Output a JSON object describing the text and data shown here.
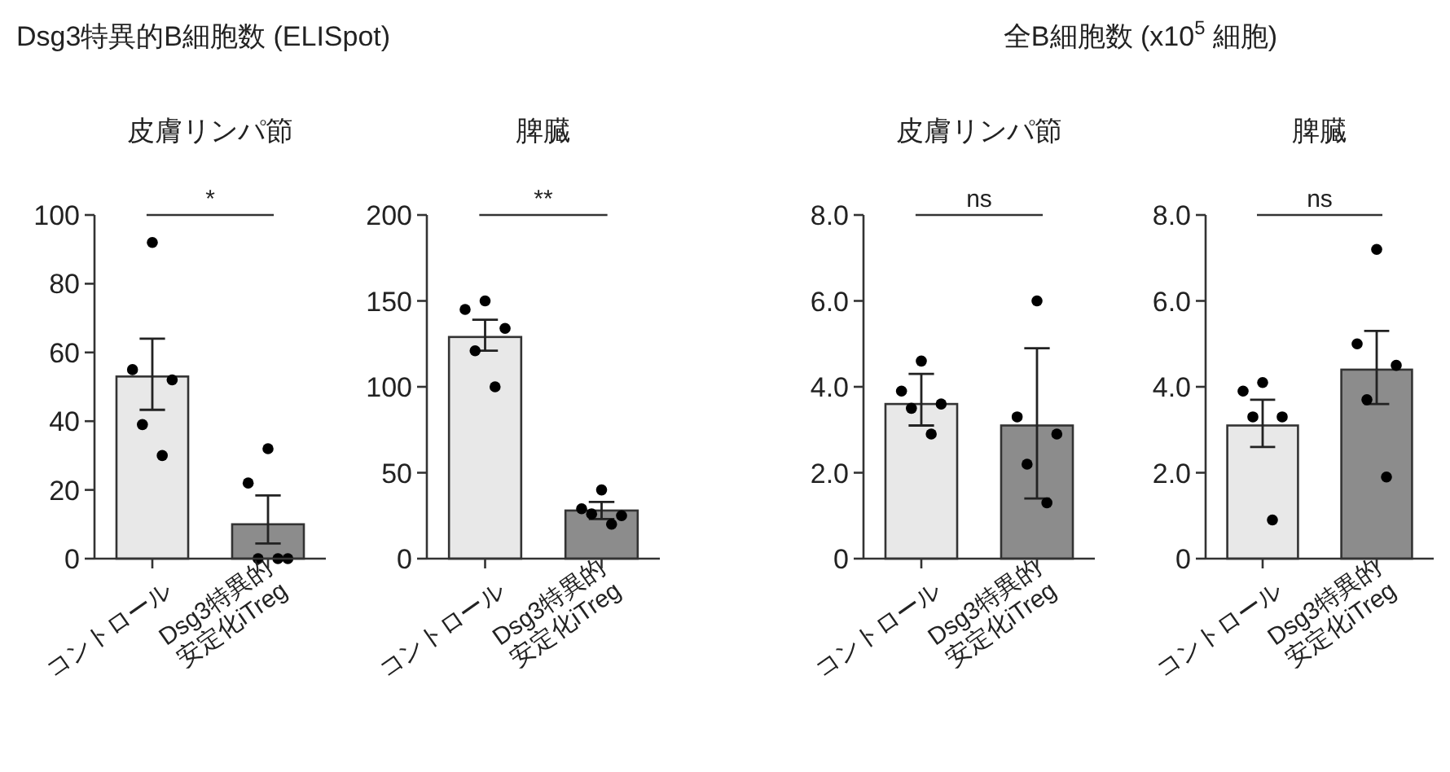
{
  "chart_data": [
    {
      "type": "bar",
      "title": "Dsg3特異的B細胞数 (ELISpot)",
      "subtitle": "皮膚リンパ節",
      "categories": [
        "コントロール",
        "Dsg3特異的 安定化iTreg"
      ],
      "ylim": [
        0,
        100
      ],
      "yticks": [
        0,
        20,
        40,
        60,
        80,
        100
      ],
      "annotations": [
        "*"
      ],
      "series": [
        {
          "type": "bar",
          "values": [
            53,
            10
          ],
          "errors": [
            [
              43.3,
              64
            ],
            [
              4.4,
              18.4
            ]
          ],
          "colors": [
            "#e8e8e8",
            "#8c8c8c"
          ]
        },
        {
          "type": "scatter",
          "marker": "circle",
          "color": "#000000",
          "x": [
            "コントロール",
            "コントロール",
            "コントロール",
            "コントロール",
            "コントロール",
            "Dsg3特異的 安定化iTreg",
            "Dsg3特異的 安定化iTreg",
            "Dsg3特異的 安定化iTreg",
            "Dsg3特異的 安定化iTreg",
            "Dsg3特異的 安定化iTreg"
          ],
          "values": [
            92,
            55,
            52,
            39,
            30,
            32,
            22,
            0,
            0,
            0
          ]
        }
      ]
    },
    {
      "type": "bar",
      "subtitle": "脾臓",
      "categories": [
        "コントロール",
        "Dsg3特異的 安定化iTreg"
      ],
      "ylim": [
        0,
        200
      ],
      "yticks": [
        0,
        50,
        100,
        150,
        200
      ],
      "annotations": [
        "**"
      ],
      "series": [
        {
          "type": "bar",
          "values": [
            129,
            28
          ],
          "errors": [
            [
              121,
              139
            ],
            [
              23,
              33
            ]
          ],
          "colors": [
            "#e8e8e8",
            "#8c8c8c"
          ]
        },
        {
          "type": "scatter",
          "marker": "circle",
          "color": "#000000",
          "x": [
            "コントロール",
            "コントロール",
            "コントロール",
            "コントロール",
            "コントロール",
            "Dsg3特異的 安定化iTreg",
            "Dsg3特異的 安定化iTreg",
            "Dsg3特異的 安定化iTreg",
            "Dsg3特異的 安定化iTreg",
            "Dsg3特異的 安定化iTreg"
          ],
          "values": [
            150,
            145,
            134,
            121,
            100,
            40,
            29,
            25,
            26,
            20
          ]
        }
      ]
    },
    {
      "type": "bar",
      "title": "全B細胞数 (x10$^{5}$ 細胞)",
      "subtitle": "皮膚リンパ節",
      "categories": [
        "コントロール",
        "Dsg3特異的 安定化iTreg"
      ],
      "ylim": [
        0,
        8
      ],
      "yticks": [
        0,
        {
          "value": 2,
          "label": "2.0"
        },
        {
          "value": 4,
          "label": "4.0"
        },
        {
          "value": 6,
          "label": "6.0"
        },
        {
          "value": 8,
          "label": "8.0"
        }
      ],
      "annotations": [
        "ns"
      ],
      "series": [
        {
          "type": "bar",
          "values": [
            3.6,
            3.1
          ],
          "errors": [
            [
              3.1,
              4.3
            ],
            [
              1.4,
              4.9
            ]
          ],
          "colors": [
            "#e8e8e8",
            "#8c8c8c"
          ]
        },
        {
          "type": "scatter",
          "marker": "circle",
          "color": "#000000",
          "x": [
            "コントロール",
            "コントロール",
            "コントロール",
            "コントロール",
            "コントロール",
            "Dsg3特異的 安定化iTreg",
            "Dsg3特異的 安定化iTreg",
            "Dsg3特異的 安定化iTreg",
            "Dsg3特異的 安定化iTreg",
            "Dsg3特異的 安定化iTreg"
          ],
          "values": [
            4.6,
            3.9,
            3.6,
            3.5,
            2.9,
            6.0,
            3.3,
            2.9,
            2.2,
            1.3
          ]
        }
      ]
    },
    {
      "type": "bar",
      "subtitle": "脾臓",
      "categories": [
        "コントロール",
        "Dsg3特異的 安定化iTreg"
      ],
      "ylim": [
        0,
        8
      ],
      "yticks": [
        0,
        {
          "value": 2,
          "label": "2.0"
        },
        {
          "value": 4,
          "label": "4.0"
        },
        {
          "value": 6,
          "label": "6.0"
        },
        {
          "value": 8,
          "label": "8.0"
        }
      ],
      "annotations": [
        "ns"
      ],
      "series": [
        {
          "type": "bar",
          "values": [
            3.1,
            4.4
          ],
          "errors": [
            [
              2.6,
              3.7
            ],
            [
              3.6,
              5.3
            ]
          ],
          "colors": [
            "#e8e8e8",
            "#8c8c8c"
          ]
        },
        {
          "type": "scatter",
          "marker": "circle",
          "color": "#000000",
          "x": [
            "コントロール",
            "コントロール",
            "コントロール",
            "コントロール",
            "コントロール",
            "Dsg3特異的 安定化iTreg",
            "Dsg3特異的 安定化iTreg",
            "Dsg3特異的 安定化iTreg",
            "Dsg3特異的 安定化iTreg",
            "Dsg3特異的 安定化iTreg"
          ],
          "values": [
            4.1,
            3.9,
            3.3,
            3.3,
            0.9,
            7.2,
            5.0,
            4.5,
            3.7,
            1.9
          ]
        }
      ]
    }
  ]
}
